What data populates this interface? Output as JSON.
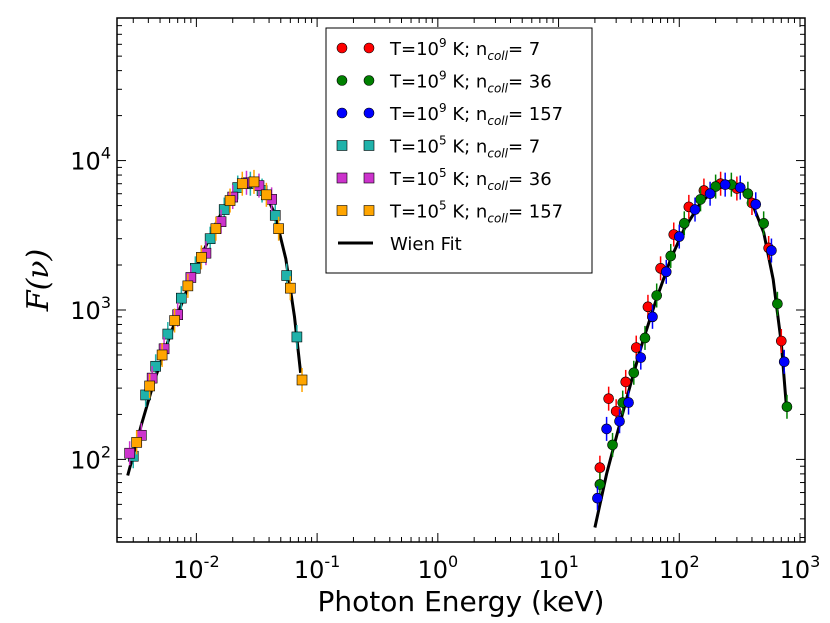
{
  "chart_data": {
    "type": "scatter",
    "x_scale": "log",
    "y_scale": "log",
    "xlim": [
      0.0022,
      1100
    ],
    "ylim": [
      28,
      90000
    ],
    "xlabel": "Photon Energy (keV)",
    "ylabel": "F(ν)",
    "x_ticks": [
      {
        "value": 0.01,
        "base": "10",
        "exp": "-2"
      },
      {
        "value": 0.1,
        "base": "10",
        "exp": "-1"
      },
      {
        "value": 1,
        "base": "10",
        "exp": "0"
      },
      {
        "value": 10,
        "base": "10",
        "exp": "1"
      },
      {
        "value": 100,
        "base": "10",
        "exp": "2"
      },
      {
        "value": 1000,
        "base": "10",
        "exp": "3"
      }
    ],
    "y_ticks": [
      {
        "value": 100,
        "base": "10",
        "exp": "2"
      },
      {
        "value": 1000,
        "base": "10",
        "exp": "3"
      },
      {
        "value": 10000,
        "base": "10",
        "exp": "4"
      }
    ],
    "legend_position": "top-center",
    "series": [
      {
        "name": "T=10^9 K; n_coll= 7",
        "legend": {
          "pre": "T=10",
          "sup": "9",
          "mid": " K; n",
          "sub": "coll",
          "post": "= 7"
        },
        "marker": "circle",
        "color": "#ff0000",
        "x": [
          22,
          26,
          30,
          36,
          44,
          55,
          70,
          90,
          120,
          160,
          220,
          300,
          400,
          550,
          700
        ],
        "y": [
          88,
          255,
          210,
          330,
          560,
          1050,
          1900,
          3200,
          4900,
          6300,
          7000,
          6500,
          5200,
          2600,
          620
        ]
      },
      {
        "name": "T=10^9 K; n_coll= 36",
        "legend": {
          "pre": "T=10",
          "sup": "9",
          "mid": " K; n",
          "sub": "coll",
          "post": "= 36"
        },
        "marker": "circle",
        "color": "#008000",
        "x": [
          22,
          28,
          34,
          42,
          52,
          65,
          85,
          110,
          150,
          200,
          270,
          370,
          500,
          650,
          780
        ],
        "y": [
          68,
          125,
          240,
          380,
          650,
          1250,
          2300,
          3800,
          5500,
          6700,
          6900,
          6000,
          3800,
          1100,
          225
        ]
      },
      {
        "name": "T=10^9 K; n_coll= 157",
        "legend": {
          "pre": "T=10",
          "sup": "9",
          "mid": " K; n",
          "sub": "coll",
          "post": "= 157"
        },
        "marker": "circle",
        "color": "#0000ff",
        "x": [
          21,
          25,
          32,
          38,
          48,
          60,
          78,
          100,
          135,
          180,
          240,
          320,
          430,
          580,
          740
        ],
        "y": [
          55,
          160,
          180,
          240,
          480,
          900,
          1800,
          3100,
          4700,
          6000,
          6900,
          6600,
          5100,
          2500,
          450
        ]
      },
      {
        "name": "T=10^5 K; n_coll= 7",
        "legend": {
          "pre": "T=10",
          "sup": "5",
          "mid": " K; n",
          "sub": "coll",
          "post": "= 7"
        },
        "marker": "square",
        "color": "#20b2aa",
        "x": [
          0.003,
          0.0038,
          0.0046,
          0.0058,
          0.0075,
          0.0098,
          0.013,
          0.017,
          0.022,
          0.028,
          0.035,
          0.045,
          0.056,
          0.068
        ],
        "y": [
          105,
          270,
          420,
          690,
          1200,
          1900,
          3000,
          4700,
          6600,
          7000,
          6300,
          4300,
          1700,
          660
        ]
      },
      {
        "name": "T=10^5 K; n_coll= 36",
        "legend": {
          "pre": "T=10",
          "sup": "5",
          "mid": " K; n",
          "sub": "coll",
          "post": "= 36"
        },
        "marker": "square",
        "color": "#cc33cc",
        "x": [
          0.0028,
          0.0035,
          0.0043,
          0.0054,
          0.007,
          0.009,
          0.012,
          0.016,
          0.02,
          0.026,
          0.033,
          0.042
        ],
        "y": [
          110,
          145,
          350,
          550,
          930,
          1650,
          2400,
          3900,
          5700,
          7100,
          6800,
          5500
        ]
      },
      {
        "name": "T=10^5 K; n_coll= 157",
        "legend": {
          "pre": "T=10",
          "sup": "5",
          "mid": " K; n",
          "sub": "coll",
          "post": "= 157"
        },
        "marker": "square",
        "color": "#ffa500",
        "x": [
          0.0032,
          0.0041,
          0.0052,
          0.0066,
          0.0085,
          0.011,
          0.0145,
          0.019,
          0.024,
          0.03,
          0.038,
          0.048,
          0.06,
          0.075
        ],
        "y": [
          130,
          310,
          500,
          850,
          1450,
          2250,
          3500,
          5400,
          7000,
          7200,
          5900,
          3500,
          1400,
          340
        ]
      }
    ],
    "fit": {
      "name": "Wien Fit",
      "color": "#000000",
      "curves": [
        {
          "x": [
            0.0027,
            0.0035,
            0.0045,
            0.006,
            0.008,
            0.011,
            0.015,
            0.02,
            0.025,
            0.03,
            0.037,
            0.045,
            0.055,
            0.065,
            0.073
          ],
          "y": [
            78,
            170,
            340,
            660,
            1250,
            2300,
            4000,
            5900,
            7000,
            7100,
            6200,
            4300,
            2200,
            900,
            380
          ]
        },
        {
          "x": [
            20,
            25,
            32,
            40,
            50,
            65,
            85,
            110,
            150,
            200,
            260,
            320,
            400,
            500,
            600,
            700,
            770
          ],
          "y": [
            35,
            80,
            170,
            330,
            620,
            1200,
            2200,
            3500,
            5200,
            6500,
            7000,
            6600,
            5200,
            3300,
            1600,
            600,
            230
          ]
        }
      ]
    }
  }
}
